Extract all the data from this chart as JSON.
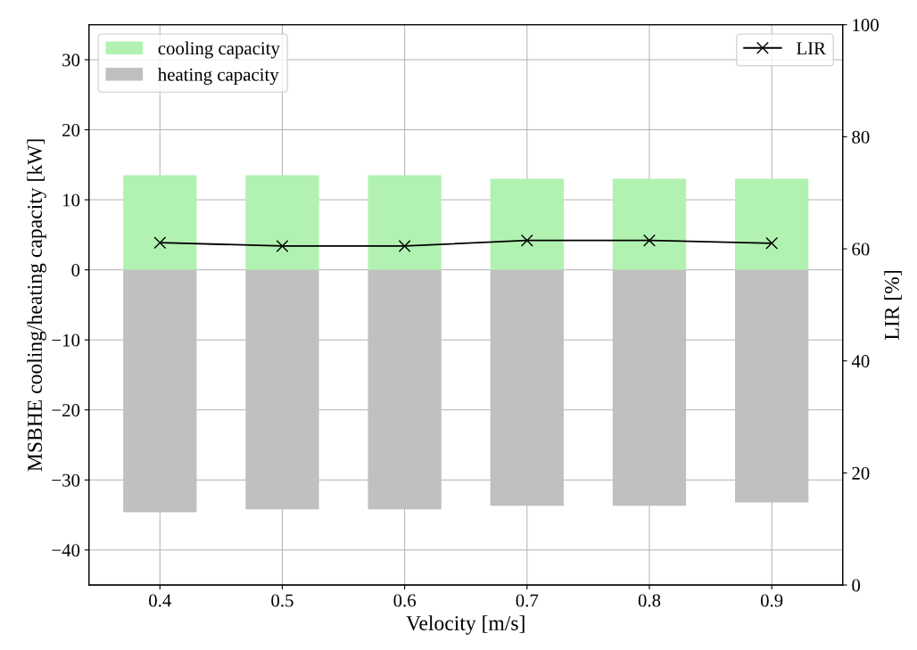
{
  "chart_data": {
    "type": "bar",
    "xlabel": "Velocity [m/s]",
    "ylabel": "MSBHE cooling/heating capacity [kW]",
    "y2label": "LIR [%]",
    "x": [
      0.4,
      0.5,
      0.6,
      0.7,
      0.8,
      0.9
    ],
    "series": [
      {
        "name": "cooling capacity",
        "color": "#b1f2b1",
        "values": [
          13.5,
          13.5,
          13.5,
          13.0,
          13.0,
          13.0
        ]
      },
      {
        "name": "heating capacity",
        "color": "#c0c0c0",
        "values": [
          -34.6,
          -34.2,
          -34.2,
          -33.7,
          -33.7,
          -33.2
        ]
      },
      {
        "name": "LIR",
        "type": "line",
        "axis": "y2",
        "color": "#000000",
        "marker": "cross",
        "line_style": "solid",
        "values": [
          61.1,
          60.5,
          60.5,
          61.5,
          61.5,
          61.0
        ]
      }
    ],
    "xlim": [
      0.342,
      0.958
    ],
    "xticks": [
      0.4,
      0.5,
      0.6,
      0.7,
      0.8,
      0.9
    ],
    "ylim": [
      -45,
      35
    ],
    "yticks": [
      -40,
      -30,
      -20,
      -10,
      0,
      10,
      20,
      30
    ],
    "y2lim": [
      0,
      100
    ],
    "y2ticks": [
      0,
      20,
      40,
      60,
      80,
      100
    ],
    "grid": true,
    "stacked": true,
    "legend": "top left"
  }
}
